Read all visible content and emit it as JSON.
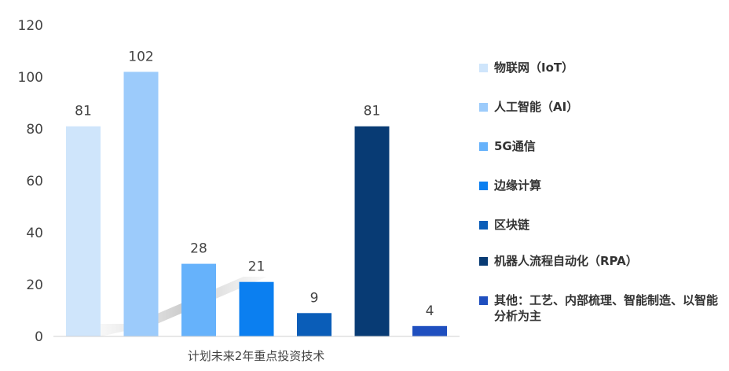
{
  "chart_data": {
    "type": "bar",
    "xlabel": "计划未来2年重点投资技术",
    "ylim": [
      0,
      120
    ],
    "yticks": [
      0,
      20,
      40,
      60,
      80,
      100,
      120
    ],
    "grid": false,
    "legend_position": "right",
    "series": [
      {
        "name": "物联网（IoT）",
        "value": 81,
        "color": "#cfe5fb"
      },
      {
        "name": "人工智能（AI）",
        "value": 102,
        "color": "#9ccbfb"
      },
      {
        "name": "5G通信",
        "value": 28,
        "color": "#66b2fb"
      },
      {
        "name": " 边缘计算",
        "value": 21,
        "color": "#0b7ff0"
      },
      {
        "name": "区块链",
        "value": 9,
        "color": "#0a5db8"
      },
      {
        "name": "机器人流程自动化（RPA）",
        "value": 81,
        "color": "#083b74"
      },
      {
        "name": "其他：工艺、内部梳理、智能制造、以智能分析为主",
        "value": 4,
        "color": "#1f4fbf"
      }
    ]
  }
}
